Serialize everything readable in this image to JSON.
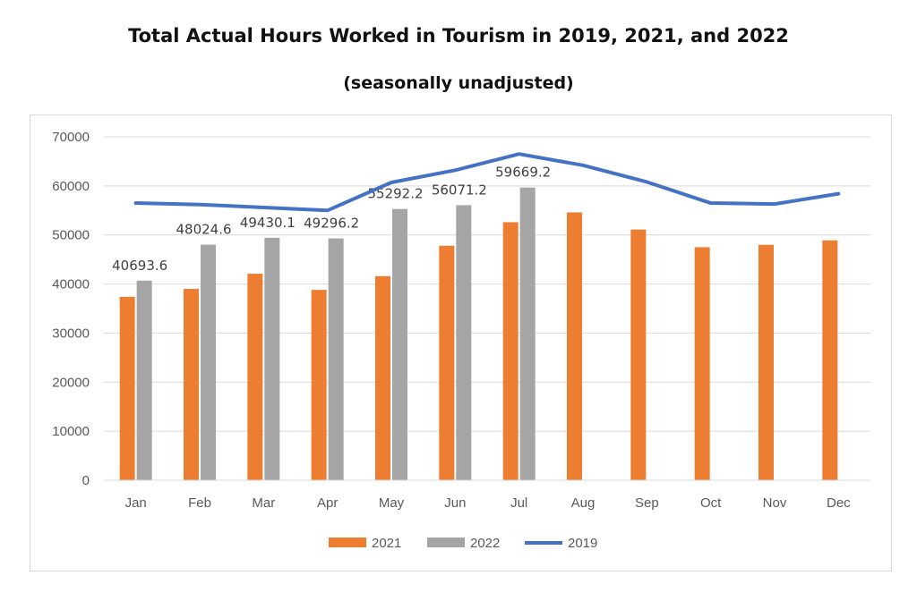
{
  "chart_data": {
    "type": "bar",
    "title": "Total Actual Hours Worked in Tourism in 2019, 2021, and 2022",
    "subtitle": "(seasonally unadjusted)",
    "categories": [
      "Jan",
      "Feb",
      "Mar",
      "Apr",
      "May",
      "Jun",
      "Jul",
      "Aug",
      "Sep",
      "Oct",
      "Nov",
      "Dec"
    ],
    "ylim": [
      0,
      70000
    ],
    "yticks": [
      0,
      10000,
      20000,
      30000,
      40000,
      50000,
      60000,
      70000
    ],
    "grid": true,
    "legend": "bottom",
    "series": [
      {
        "name": "2021",
        "type": "bar",
        "color": "#ed7d31",
        "values": [
          37400,
          39000,
          42100,
          38800,
          41600,
          47800,
          52600,
          54600,
          51100,
          47500,
          48000,
          48900
        ]
      },
      {
        "name": "2022",
        "type": "bar",
        "color": "#a5a5a5",
        "values": [
          40693.6,
          48024.6,
          49430.1,
          49296.2,
          55292.2,
          56071.2,
          59669.2,
          null,
          null,
          null,
          null,
          null
        ],
        "data_labels": [
          "40693.6",
          "48024.6",
          "49430.1",
          "49296.2",
          "55292.2",
          "56071.2",
          "59669.2"
        ]
      },
      {
        "name": "2019",
        "type": "line",
        "color": "#4472c4",
        "values": [
          56500,
          56200,
          55600,
          55000,
          60700,
          63200,
          66500,
          64200,
          60800,
          56500,
          56300,
          58400
        ]
      }
    ]
  }
}
